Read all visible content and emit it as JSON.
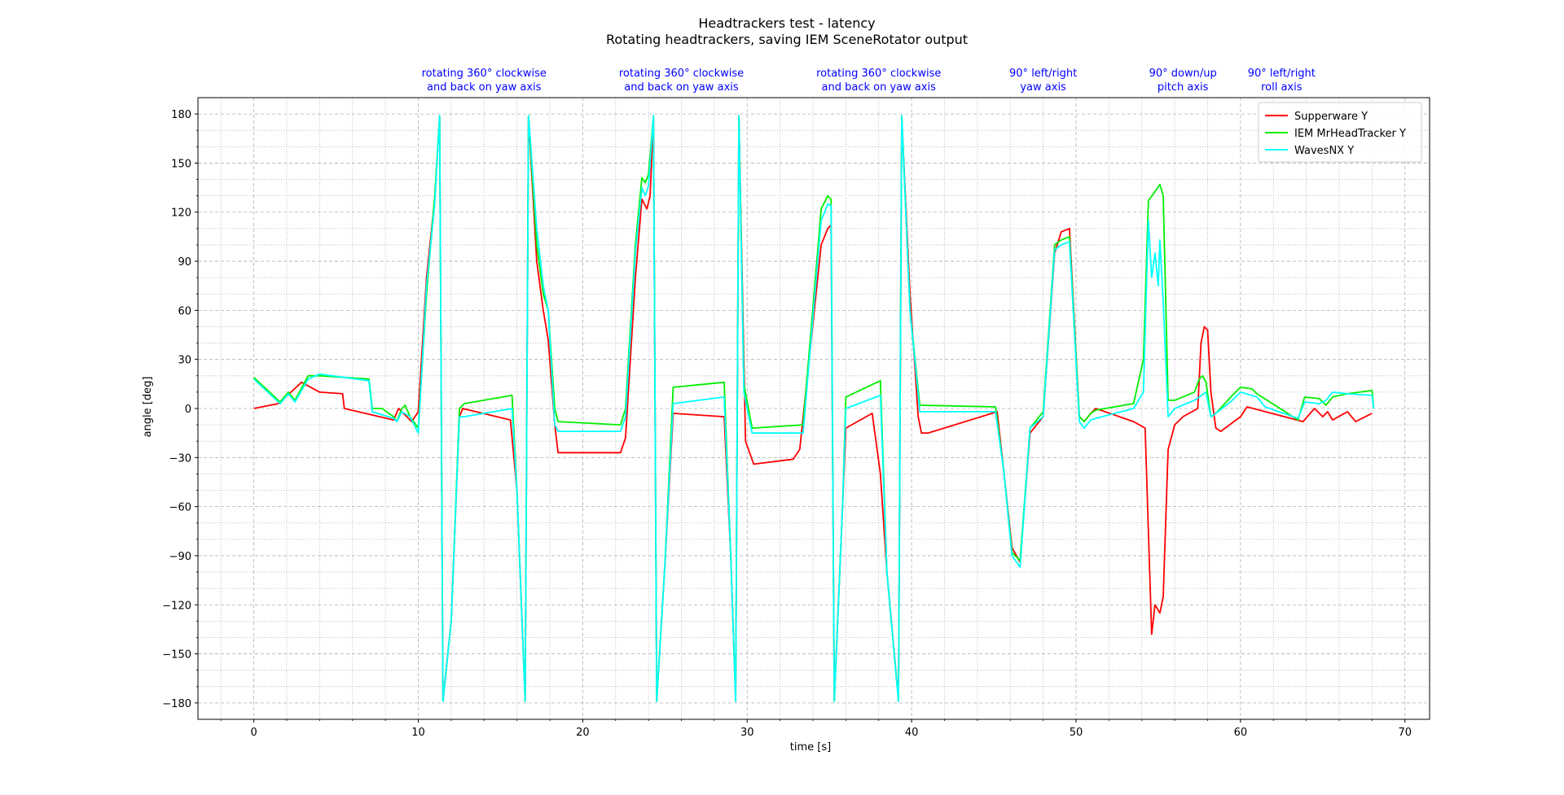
{
  "chart_data": {
    "type": "line",
    "title": "Headtrackers test - latency",
    "subtitle": "Rotating headtrackers, saving IEM SceneRotator output",
    "xlabel": "time [s]",
    "ylabel": "angle [deg]",
    "xlim": [
      -3.4,
      71.5
    ],
    "ylim": [
      -190,
      190
    ],
    "xticks": [
      0,
      10,
      20,
      30,
      40,
      50,
      60,
      70
    ],
    "yticks": [
      180,
      150,
      120,
      90,
      60,
      30,
      0,
      -30,
      -60,
      -90,
      -120,
      -150,
      -180
    ],
    "xtick_labels": [
      "0",
      "10",
      "20",
      "30",
      "40",
      "50",
      "60",
      "70"
    ],
    "ytick_labels": [
      "180",
      "150",
      "120",
      "90",
      "60",
      "30",
      "0",
      "−30",
      "−60",
      "−90",
      "−120",
      "−150",
      "−180"
    ],
    "grid": "major dashed, minor dotted",
    "legend_position": "top-right",
    "annotations": [
      {
        "x": 14.0,
        "lines": [
          "rotating 360° clockwise",
          "and back on yaw axis"
        ]
      },
      {
        "x": 26.0,
        "lines": [
          "rotating 360° clockwise",
          "and back on yaw axis"
        ]
      },
      {
        "x": 38.0,
        "lines": [
          "rotating 360° clockwise",
          "and back on yaw axis"
        ]
      },
      {
        "x": 48.0,
        "lines": [
          "90° left/right",
          "yaw axis"
        ]
      },
      {
        "x": 56.5,
        "lines": [
          "90° down/up",
          "pitch axis"
        ]
      },
      {
        "x": 62.5,
        "lines": [
          "90° left/right",
          "roll axis"
        ]
      }
    ],
    "series": [
      {
        "name": "Supperware Y",
        "color": "#ff0000",
        "points": [
          [
            0,
            0
          ],
          [
            1.5,
            3
          ],
          [
            2.9,
            16
          ],
          [
            4,
            10
          ],
          [
            5.4,
            9
          ],
          [
            5.5,
            0
          ],
          [
            8.5,
            -7
          ],
          [
            8.8,
            0
          ],
          [
            9.6,
            -8
          ],
          [
            10,
            -2
          ],
          [
            10.5,
            80
          ],
          [
            11,
            128
          ],
          [
            11.3,
            178
          ],
          [
            11.5,
            -178
          ],
          [
            12,
            -130
          ],
          [
            12.5,
            -5
          ],
          [
            12.7,
            0
          ],
          [
            15.6,
            -7
          ],
          [
            16,
            -50
          ],
          [
            16.5,
            -178
          ],
          [
            16.7,
            178
          ],
          [
            17.2,
            90
          ],
          [
            17.6,
            60
          ],
          [
            17.9,
            42
          ],
          [
            18.3,
            -10
          ],
          [
            18.5,
            -27
          ],
          [
            22.3,
            -27
          ],
          [
            22.6,
            -18
          ],
          [
            23.2,
            80
          ],
          [
            23.6,
            128
          ],
          [
            23.9,
            122
          ],
          [
            24.1,
            130
          ],
          [
            24.3,
            178
          ],
          [
            24.5,
            -178
          ],
          [
            25,
            -95
          ],
          [
            25.5,
            -3
          ],
          [
            28.6,
            -5
          ],
          [
            29,
            -90
          ],
          [
            29.3,
            -178
          ],
          [
            29.5,
            178
          ],
          [
            29.9,
            -20
          ],
          [
            30.4,
            -34
          ],
          [
            32.8,
            -31
          ],
          [
            33.2,
            -25
          ],
          [
            34.5,
            100
          ],
          [
            34.9,
            110
          ],
          [
            35.1,
            112
          ],
          [
            35.3,
            -178
          ],
          [
            35.8,
            -60
          ],
          [
            36,
            -12
          ],
          [
            37.6,
            -3
          ],
          [
            38.1,
            -40
          ],
          [
            38.5,
            -100
          ],
          [
            39.2,
            -178
          ],
          [
            39.4,
            178
          ],
          [
            39.9,
            70
          ],
          [
            40.4,
            -5
          ],
          [
            40.6,
            -15
          ],
          [
            41,
            -15
          ],
          [
            45.2,
            -2
          ],
          [
            45.6,
            -38
          ],
          [
            46.1,
            -85
          ],
          [
            46.6,
            -94
          ],
          [
            47.2,
            -15
          ],
          [
            48,
            -5
          ],
          [
            48.7,
            95
          ],
          [
            49.1,
            108
          ],
          [
            49.6,
            110
          ],
          [
            50.2,
            -5
          ],
          [
            50.5,
            -8
          ],
          [
            50.9,
            -3
          ],
          [
            51.2,
            0
          ],
          [
            53.5,
            -8
          ],
          [
            54.2,
            -12
          ],
          [
            54.6,
            -138
          ],
          [
            54.8,
            -120
          ],
          [
            55.1,
            -125
          ],
          [
            55.3,
            -115
          ],
          [
            55.6,
            -25
          ],
          [
            56,
            -10
          ],
          [
            56.5,
            -5
          ],
          [
            57.4,
            0
          ],
          [
            57.6,
            40
          ],
          [
            57.8,
            50
          ],
          [
            58,
            48
          ],
          [
            58.2,
            10
          ],
          [
            58.5,
            -12
          ],
          [
            58.8,
            -14
          ],
          [
            60,
            -5
          ],
          [
            60.4,
            1
          ],
          [
            63.8,
            -8
          ],
          [
            64.5,
            0
          ],
          [
            65,
            -5
          ],
          [
            65.3,
            -2
          ],
          [
            65.6,
            -7
          ],
          [
            66.5,
            -2
          ],
          [
            67,
            -8
          ],
          [
            68,
            -3
          ]
        ]
      },
      {
        "name": "IEM MrHeadTracker Y",
        "color": "#00ee00",
        "points": [
          [
            0,
            19
          ],
          [
            1.6,
            4
          ],
          [
            2.1,
            10
          ],
          [
            2.5,
            5
          ],
          [
            3.3,
            20
          ],
          [
            4,
            20
          ],
          [
            7,
            18
          ],
          [
            7.2,
            0
          ],
          [
            7.8,
            0
          ],
          [
            8.5,
            -5
          ],
          [
            8.7,
            -8
          ],
          [
            9,
            0
          ],
          [
            9.2,
            2
          ],
          [
            9.5,
            -5
          ],
          [
            10,
            -12
          ],
          [
            10.5,
            70
          ],
          [
            11,
            130
          ],
          [
            11.3,
            179
          ],
          [
            11.5,
            -179
          ],
          [
            12,
            -130
          ],
          [
            12.5,
            0
          ],
          [
            12.8,
            3
          ],
          [
            15.7,
            8
          ],
          [
            16,
            -50
          ],
          [
            16.5,
            -179
          ],
          [
            16.7,
            179
          ],
          [
            17.2,
            100
          ],
          [
            17.6,
            70
          ],
          [
            17.9,
            60
          ],
          [
            18.3,
            0
          ],
          [
            18.5,
            -8
          ],
          [
            22.3,
            -10
          ],
          [
            22.6,
            0
          ],
          [
            23.2,
            100
          ],
          [
            23.6,
            141
          ],
          [
            23.8,
            138
          ],
          [
            24,
            143
          ],
          [
            24.3,
            179
          ],
          [
            24.5,
            -179
          ],
          [
            25,
            -95
          ],
          [
            25.5,
            13
          ],
          [
            28.6,
            16
          ],
          [
            29,
            -90
          ],
          [
            29.3,
            -179
          ],
          [
            29.5,
            179
          ],
          [
            29.8,
            15
          ],
          [
            30.3,
            -12
          ],
          [
            33.4,
            -10
          ],
          [
            34.5,
            122
          ],
          [
            34.9,
            130
          ],
          [
            35.1,
            128
          ],
          [
            35.3,
            -179
          ],
          [
            35.8,
            -60
          ],
          [
            36,
            7
          ],
          [
            38.1,
            17
          ],
          [
            38.5,
            -100
          ],
          [
            39.2,
            -179
          ],
          [
            39.4,
            179
          ],
          [
            39.9,
            60
          ],
          [
            40.5,
            2
          ],
          [
            45.1,
            1
          ],
          [
            45.6,
            -38
          ],
          [
            46.1,
            -88
          ],
          [
            46.6,
            -93
          ],
          [
            47.2,
            -12
          ],
          [
            48,
            -2
          ],
          [
            48.7,
            100
          ],
          [
            49.1,
            103
          ],
          [
            49.6,
            105
          ],
          [
            50.2,
            -5
          ],
          [
            50.5,
            -8
          ],
          [
            50.9,
            -3
          ],
          [
            51.2,
            -1
          ],
          [
            53.5,
            3
          ],
          [
            54.1,
            30
          ],
          [
            54.4,
            127
          ],
          [
            54.9,
            134
          ],
          [
            55.1,
            137
          ],
          [
            55.3,
            130
          ],
          [
            55.6,
            5
          ],
          [
            56,
            5
          ],
          [
            57.2,
            10
          ],
          [
            57.5,
            18
          ],
          [
            57.7,
            20
          ],
          [
            57.9,
            16
          ],
          [
            58.2,
            -5
          ],
          [
            58.5,
            -3
          ],
          [
            59.5,
            8
          ],
          [
            60,
            13
          ],
          [
            60.7,
            12
          ],
          [
            61,
            9
          ],
          [
            63.5,
            -7
          ],
          [
            63.9,
            7
          ],
          [
            64.8,
            6
          ],
          [
            65.2,
            2
          ],
          [
            65.6,
            7
          ],
          [
            66.5,
            9
          ],
          [
            68,
            11
          ],
          [
            68.1,
            0
          ]
        ]
      },
      {
        "name": "WavesNX Y",
        "color": "#00ffff",
        "points": [
          [
            0,
            18
          ],
          [
            1.6,
            3
          ],
          [
            2.1,
            9
          ],
          [
            2.5,
            4
          ],
          [
            3.3,
            18
          ],
          [
            4,
            21
          ],
          [
            7,
            17
          ],
          [
            7.2,
            -2
          ],
          [
            8.5,
            -6
          ],
          [
            8.7,
            -8
          ],
          [
            9,
            -2
          ],
          [
            9.5,
            -5
          ],
          [
            10,
            -15
          ],
          [
            10.5,
            75
          ],
          [
            11,
            125
          ],
          [
            11.3,
            179
          ],
          [
            11.5,
            -179
          ],
          [
            12,
            -130
          ],
          [
            12.5,
            -5
          ],
          [
            12.8,
            -5
          ],
          [
            15.7,
            0
          ],
          [
            16,
            -50
          ],
          [
            16.5,
            -179
          ],
          [
            16.7,
            179
          ],
          [
            17.2,
            110
          ],
          [
            17.6,
            75
          ],
          [
            17.9,
            60
          ],
          [
            18.3,
            -10
          ],
          [
            18.5,
            -14
          ],
          [
            22.3,
            -14
          ],
          [
            22.6,
            -5
          ],
          [
            23.2,
            95
          ],
          [
            23.6,
            135
          ],
          [
            23.8,
            130
          ],
          [
            24,
            136
          ],
          [
            24.3,
            179
          ],
          [
            24.5,
            -179
          ],
          [
            25,
            -95
          ],
          [
            25.5,
            3
          ],
          [
            28.6,
            7
          ],
          [
            29,
            -90
          ],
          [
            29.3,
            -179
          ],
          [
            29.5,
            179
          ],
          [
            29.8,
            10
          ],
          [
            30.3,
            -15
          ],
          [
            33.4,
            -15
          ],
          [
            34.5,
            115
          ],
          [
            34.9,
            125
          ],
          [
            35.1,
            124
          ],
          [
            35.3,
            -179
          ],
          [
            35.8,
            -60
          ],
          [
            36,
            0
          ],
          [
            38.1,
            8
          ],
          [
            38.5,
            -100
          ],
          [
            39.2,
            -179
          ],
          [
            39.4,
            179
          ],
          [
            39.9,
            60
          ],
          [
            40.5,
            -2
          ],
          [
            45.1,
            -2
          ],
          [
            45.6,
            -38
          ],
          [
            46.1,
            -90
          ],
          [
            46.6,
            -97
          ],
          [
            47.2,
            -12
          ],
          [
            48,
            -5
          ],
          [
            48.7,
            97
          ],
          [
            49.1,
            100
          ],
          [
            49.6,
            102
          ],
          [
            50.2,
            -8
          ],
          [
            50.5,
            -12
          ],
          [
            50.9,
            -7
          ],
          [
            51.2,
            -6
          ],
          [
            53.5,
            0
          ],
          [
            54.1,
            10
          ],
          [
            54.4,
            115
          ],
          [
            54.6,
            80
          ],
          [
            54.8,
            95
          ],
          [
            55,
            75
          ],
          [
            55.1,
            103
          ],
          [
            55.3,
            65
          ],
          [
            55.6,
            -5
          ],
          [
            56,
            0
          ],
          [
            57.2,
            5
          ],
          [
            57.5,
            7
          ],
          [
            57.9,
            10
          ],
          [
            58.2,
            -5
          ],
          [
            58.5,
            -3
          ],
          [
            59.5,
            5
          ],
          [
            60,
            10
          ],
          [
            61,
            7
          ],
          [
            61.5,
            1
          ],
          [
            63.5,
            -6
          ],
          [
            63.9,
            4
          ],
          [
            64.8,
            3
          ],
          [
            65.2,
            5
          ],
          [
            65.6,
            10
          ],
          [
            66.5,
            9
          ],
          [
            68,
            8
          ],
          [
            68.1,
            0
          ]
        ]
      }
    ]
  }
}
